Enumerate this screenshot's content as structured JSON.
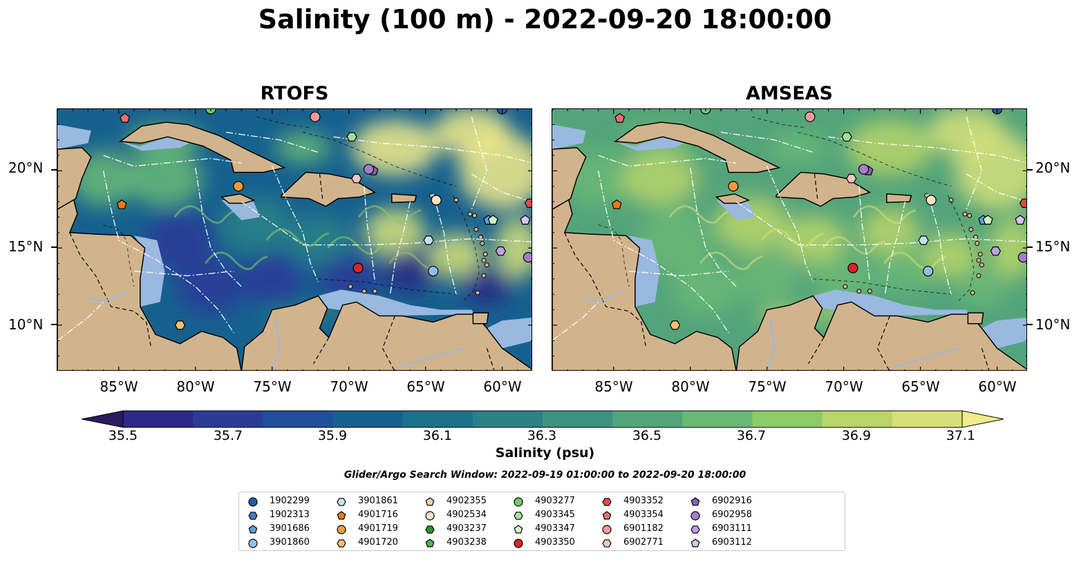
{
  "title": "Salinity (100 m) - 2022-09-20 18:00:00",
  "panels": [
    {
      "name": "RTOFS",
      "scheme": "rtofs"
    },
    {
      "name": "AMSEAS",
      "scheme": "amseas"
    }
  ],
  "axes": {
    "x_ticks": [
      "85°W",
      "80°W",
      "75°W",
      "70°W",
      "65°W",
      "60°W"
    ],
    "x_values": [
      -85,
      -80,
      -75,
      -70,
      -65,
      -60
    ],
    "y_ticks": [
      "20°N",
      "15°N",
      "10°N"
    ],
    "y_values": [
      20,
      15,
      10
    ],
    "lon_range": [
      -89,
      -58
    ],
    "lat_range": [
      7,
      24
    ]
  },
  "colorbar": {
    "label": "Salinity (psu)",
    "ticks": [
      "35.5",
      "35.7",
      "35.9",
      "36.1",
      "36.3",
      "36.5",
      "36.7",
      "36.9",
      "37.1"
    ],
    "range": [
      35.4,
      37.2
    ],
    "extend": "both",
    "colors": [
      "#2a1a5e",
      "#2c2a84",
      "#2c3b98",
      "#214e9a",
      "#17618f",
      "#1a7188",
      "#2b8186",
      "#3e9181",
      "#54a47b",
      "#6ab876",
      "#8fcb68",
      "#b7d56a",
      "#d6e07a",
      "#f3ec8a"
    ]
  },
  "search_window": "Glider/Argo Search Window: 2022-09-19 01:00:00 to 2022-09-20 18:00:00",
  "legend": [
    {
      "id": "1902299",
      "marker": "circle",
      "color": "#1f5ca8"
    },
    {
      "id": "1902313",
      "marker": "hexagon",
      "color": "#3d7fc2"
    },
    {
      "id": "3901686",
      "marker": "pentagon",
      "color": "#5aa3dc"
    },
    {
      "id": "3901860",
      "marker": "circle",
      "color": "#8ec2ea"
    },
    {
      "id": "3901861",
      "marker": "hexagon",
      "color": "#c4e2f5"
    },
    {
      "id": "4901716",
      "marker": "pentagon",
      "color": "#f07a10"
    },
    {
      "id": "4901719",
      "marker": "circle",
      "color": "#f59b38"
    },
    {
      "id": "4901720",
      "marker": "hexagon",
      "color": "#f8bd70"
    },
    {
      "id": "4902355",
      "marker": "pentagon",
      "color": "#fbd3a2"
    },
    {
      "id": "4902534",
      "marker": "circle",
      "color": "#fde3c6"
    },
    {
      "id": "4903237",
      "marker": "hexagon",
      "color": "#22962e"
    },
    {
      "id": "4903238",
      "marker": "pentagon",
      "color": "#49b64b"
    },
    {
      "id": "4903277",
      "marker": "circle",
      "color": "#74c96a"
    },
    {
      "id": "4903345",
      "marker": "hexagon",
      "color": "#a6df95"
    },
    {
      "id": "4903347",
      "marker": "pentagon",
      "color": "#d2f2c6"
    },
    {
      "id": "4903350",
      "marker": "circle",
      "color": "#d62628"
    },
    {
      "id": "4903352",
      "marker": "hexagon",
      "color": "#e24b4b"
    },
    {
      "id": "4903354",
      "marker": "pentagon",
      "color": "#ee6f6f"
    },
    {
      "id": "6901182",
      "marker": "circle",
      "color": "#f49a9a"
    },
    {
      "id": "6902771",
      "marker": "hexagon",
      "color": "#f8c4c4"
    },
    {
      "id": "6902916",
      "marker": "pentagon",
      "color": "#8a5fb0"
    },
    {
      "id": "6902958",
      "marker": "circle",
      "color": "#a77ccc"
    },
    {
      "id": "6903111",
      "marker": "hexagon",
      "color": "#c29fe0"
    },
    {
      "id": "6903112",
      "marker": "pentagon",
      "color": "#dac4f0"
    }
  ],
  "floats": [
    {
      "id": "4903354",
      "lon": -84.6,
      "lat": 23.4
    },
    {
      "id": "6901182",
      "lon": -72.2,
      "lat": 23.5
    },
    {
      "id": "1902299",
      "lon": -60.0,
      "lat": 24.0
    },
    {
      "id": "4903277",
      "lon": -79.0,
      "lat": 24.0
    },
    {
      "id": "4903345",
      "lon": -69.8,
      "lat": 22.2
    },
    {
      "id": "6902916",
      "lon": -68.4,
      "lat": 20.0
    },
    {
      "id": "6902958",
      "lon": -68.7,
      "lat": 20.1
    },
    {
      "id": "6902771",
      "lon": -69.5,
      "lat": 19.5
    },
    {
      "id": "4901719",
      "lon": -77.2,
      "lat": 19.0
    },
    {
      "id": "4901716",
      "lon": -84.8,
      "lat": 17.8
    },
    {
      "id": "4902534",
      "lon": -64.3,
      "lat": 18.1
    },
    {
      "id": "4903352",
      "lon": -58.2,
      "lat": 17.9
    },
    {
      "id": "3901686",
      "lon": -60.9,
      "lat": 16.8
    },
    {
      "id": "4903347",
      "lon": -60.6,
      "lat": 16.8
    },
    {
      "id": "6903112",
      "lon": -58.5,
      "lat": 16.8
    },
    {
      "id": "3901861",
      "lon": -64.8,
      "lat": 15.5
    },
    {
      "id": "6903111",
      "lon": -60.1,
      "lat": 14.8
    },
    {
      "id": "6902958",
      "lon": -58.3,
      "lat": 14.4
    },
    {
      "id": "4903350",
      "lon": -69.4,
      "lat": 13.7
    },
    {
      "id": "3901860",
      "lon": -64.5,
      "lat": 13.5
    },
    {
      "id": "4901720",
      "lon": -81.0,
      "lat": 10.0
    }
  ]
}
